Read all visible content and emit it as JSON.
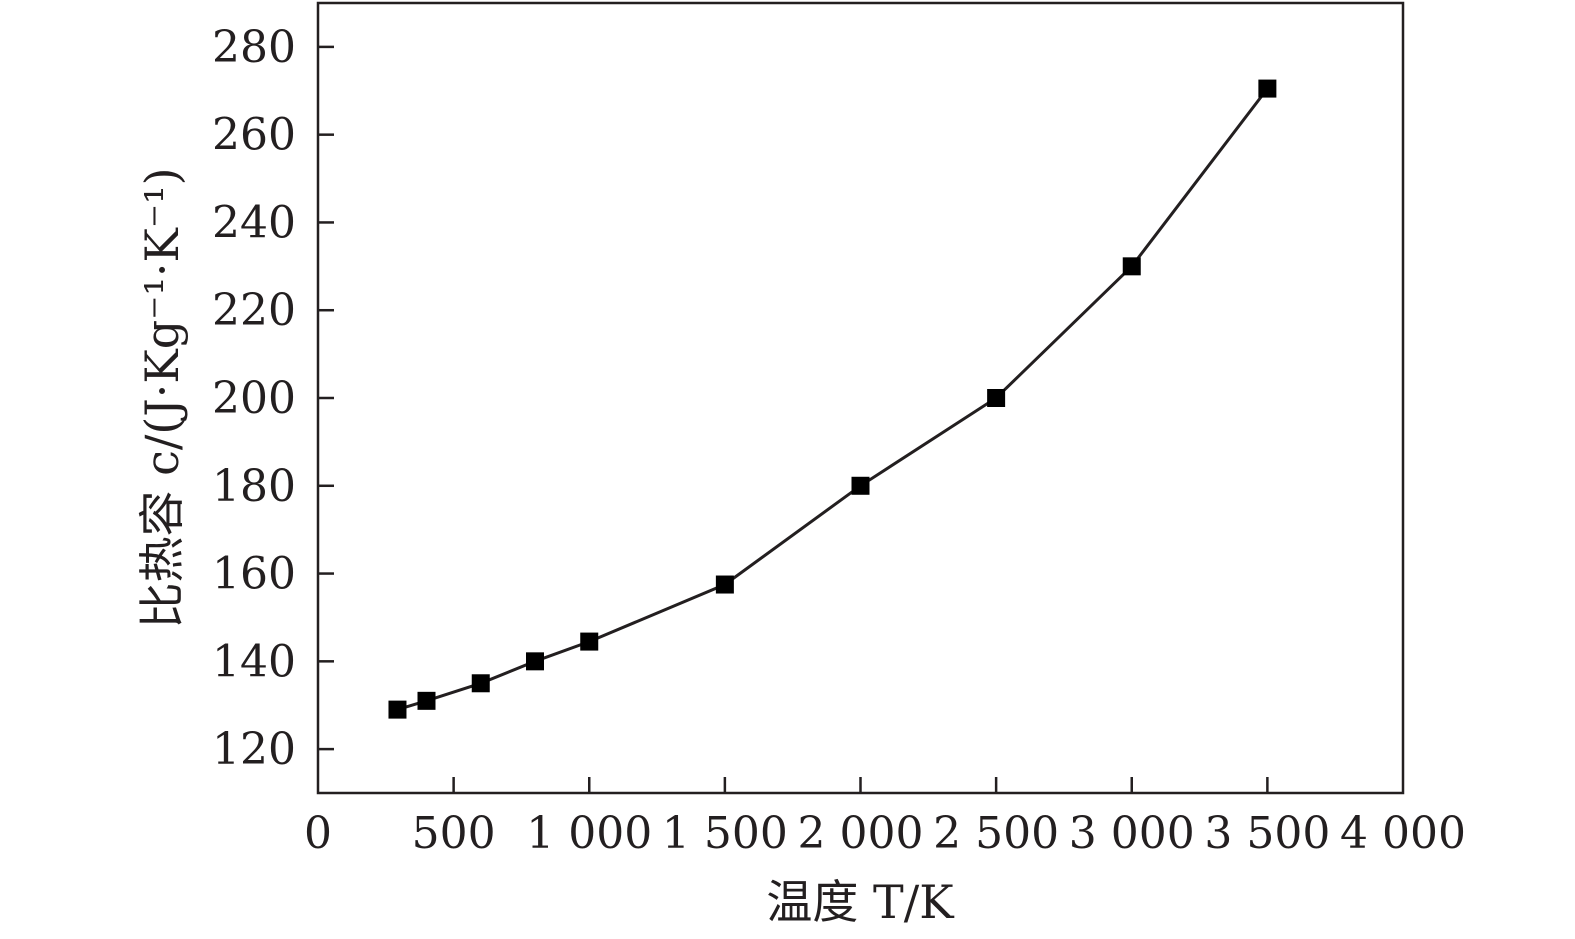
{
  "chart_data": {
    "type": "line",
    "title": "",
    "xlabel": "温度 T/K",
    "ylabel": "比热容 c/(J·Kg⁻¹·K⁻¹)",
    "xlim": [
      0,
      4000
    ],
    "ylim": [
      110,
      290
    ],
    "x_ticks": [
      0,
      500,
      1000,
      1500,
      2000,
      2500,
      3000,
      3500,
      4000
    ],
    "x_tick_labels": [
      "0",
      "500",
      "1 000",
      "1 500",
      "2 000",
      "2 500",
      "3 000",
      "3 500",
      "4 000"
    ],
    "y_ticks": [
      120,
      140,
      160,
      180,
      200,
      220,
      240,
      260,
      280
    ],
    "y_tick_labels": [
      "120",
      "140",
      "160",
      "180",
      "200",
      "220",
      "240",
      "260",
      "280"
    ],
    "grid": false,
    "marker": "square",
    "series": [
      {
        "x": [
          293,
          400,
          600,
          800,
          1000,
          1500,
          2000,
          2500,
          3000,
          3500
        ],
        "y": [
          129,
          131,
          135,
          140,
          144.5,
          157.5,
          180,
          200,
          230,
          270.5
        ]
      }
    ],
    "colors": {
      "line": "#231f20",
      "marker": "#000000",
      "frame": "#231f20"
    }
  }
}
